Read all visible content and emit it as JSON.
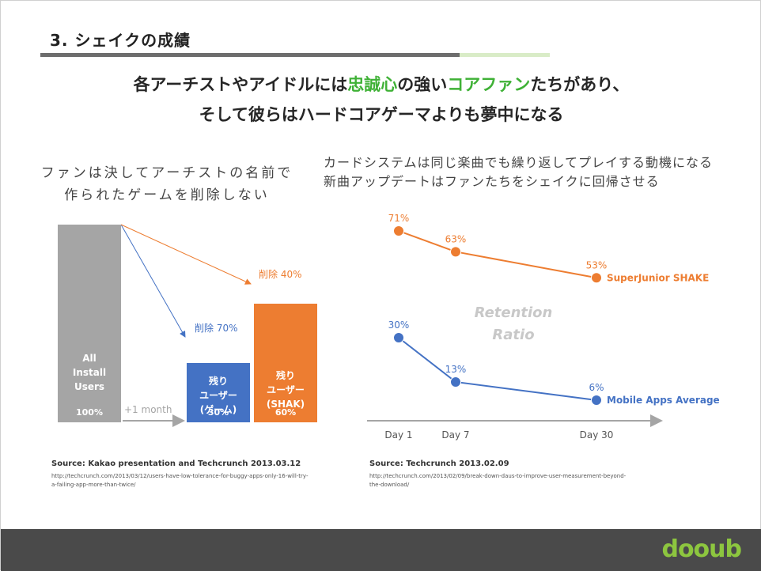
{
  "slide": {
    "title": "3. シェイクの成績",
    "headline_line1_a": "各アーチストやアイドルには",
    "headline_line1_b": "忠誠心",
    "headline_line1_c": "の強い",
    "headline_line1_d": "コアファン",
    "headline_line1_e": "たちがあり、",
    "headline_line2": "そして彼らはハードコアゲーマよりも夢中になる",
    "left_note_line1": "ファンは決してアーチストの名前で",
    "left_note_line2": "作られたゲームを削除しない",
    "right_note_line1": "カードシステムは同じ楽曲でも繰り返してプレイする動機になる",
    "right_note_line2": "新曲アップデートはファンたちをシェイクに回帰させる",
    "logo": "dooub",
    "colors": {
      "accent_green": "#3fb136",
      "orange": "#ed7d31",
      "blue": "#4472c4",
      "gray": "#a5a5a5"
    }
  },
  "left_source": {
    "label": "Source:  Kakao presentation  and Techcrunch  2013.03.12",
    "url_line1": "http://techcrunch.com/2013/03/12/users-have-low-tolerance-for-buggy-apps-only-16-will-try-",
    "url_line2": "a-failing-app-more-than-twice/"
  },
  "right_source": {
    "label": "Source:  Techcrunch  2013.02.09",
    "url_line1": "http://techcrunch.com/2013/02/09/break-down-daus-to-improve-user-measurement-beyond-",
    "url_line2": "the-download/"
  },
  "chart_data": [
    {
      "type": "bar",
      "categories": [
        "All Install Users",
        "残り ユーザー (ゲーム)",
        "残り ユーザー (SHAK)"
      ],
      "bar_text": [
        [
          "All",
          "Install",
          "Users"
        ],
        [
          "残り",
          "ユーザー",
          "(ゲーム)"
        ],
        [
          "残り",
          "ユーザー",
          "(SHAK)"
        ]
      ],
      "values": [
        100,
        30,
        60
      ],
      "value_labels": [
        "100%",
        "30%",
        "60%"
      ],
      "bar_colors": [
        "#a5a5a5",
        "#4472c4",
        "#ed7d31"
      ],
      "annotations": {
        "deleted_game": "削除 70%",
        "deleted_shake": "削除 40%",
        "period": "+1 month"
      },
      "ylim": [
        0,
        100
      ]
    },
    {
      "type": "line",
      "x": [
        "Day 1",
        "Day 7",
        "Day 30"
      ],
      "series": [
        {
          "name": "SuperJunior SHAKE",
          "values": [
            71,
            63,
            53
          ],
          "labels": [
            "71%",
            "63%",
            "53%"
          ],
          "color": "#ed7d31"
        },
        {
          "name": "Mobile Apps Average",
          "values": [
            30,
            13,
            6
          ],
          "labels": [
            "30%",
            "13%",
            "6%"
          ],
          "color": "#4472c4"
        }
      ],
      "watermark_line1": "Retention",
      "watermark_line2": "Ratio",
      "ylim": [
        0,
        80
      ]
    }
  ]
}
